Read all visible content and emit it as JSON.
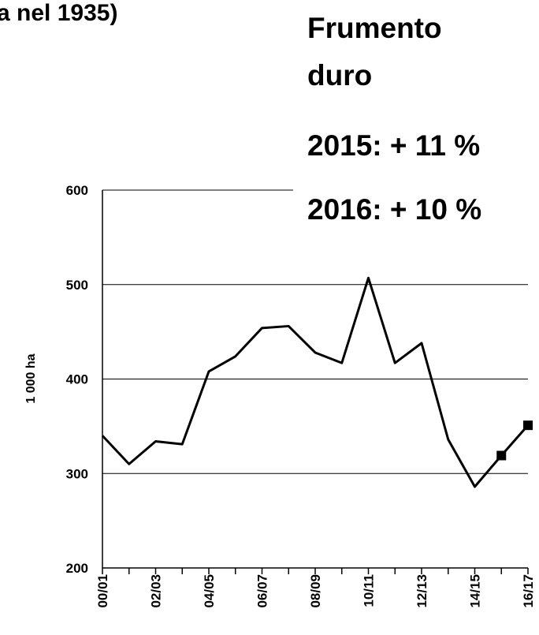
{
  "chart_data": {
    "type": "line",
    "annotations": [
      "a nel 1935)",
      "Frumento",
      "duro",
      "2015: + 11 %",
      "2016: + 10 %"
    ],
    "ylabel": "1 000 ha",
    "categories": [
      "00/01",
      null,
      "02/03",
      null,
      "04/05",
      null,
      "06/07",
      null,
      "08/09",
      null,
      "10/11",
      null,
      "12/13",
      null,
      "14/15",
      null,
      "16/17"
    ],
    "series": [
      {
        "color": "#000000",
        "values": [
          340,
          310,
          334,
          331,
          408,
          424,
          454,
          456,
          428,
          417,
          507,
          417,
          438,
          336,
          286,
          319,
          351
        ]
      }
    ],
    "square_markers_from": 15,
    "ylim": [
      200,
      600
    ],
    "yticks": [
      200,
      300,
      400,
      500,
      600
    ],
    "grid": true
  }
}
